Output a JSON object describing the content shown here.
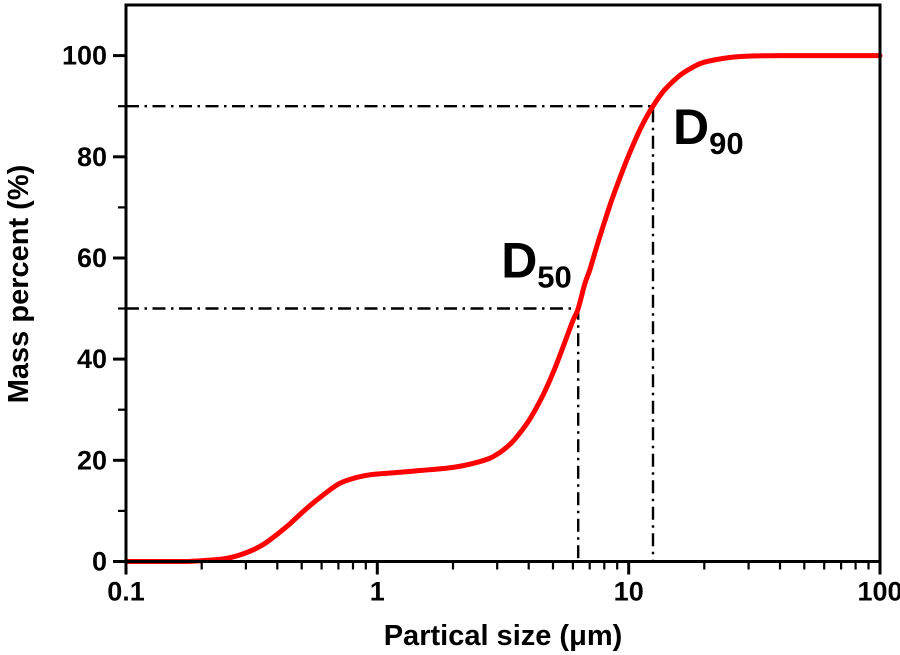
{
  "chart_data": {
    "type": "line",
    "title": "",
    "xlabel": "Partical size (μm)",
    "ylabel": "Mass percent (%)",
    "x_scale": "log",
    "y_scale": "linear",
    "xlim": [
      0.1,
      100
    ],
    "ylim": [
      0,
      110
    ],
    "grid": false,
    "legend": "none",
    "axis_color": "#000000",
    "reference_line_color": "#000000",
    "x_major_ticks": [
      0.1,
      1,
      10,
      100
    ],
    "x_tick_labels": [
      "0.1",
      "1",
      "10",
      "100"
    ],
    "x_minor_ticks": [
      0.2,
      0.3,
      0.4,
      0.5,
      0.6,
      0.7,
      0.8,
      0.9,
      2,
      3,
      4,
      5,
      6,
      7,
      8,
      9,
      20,
      30,
      40,
      50,
      60,
      70,
      80,
      90
    ],
    "y_major_ticks": [
      0,
      20,
      40,
      60,
      80,
      100
    ],
    "y_tick_labels": [
      "0",
      "20",
      "40",
      "60",
      "80",
      "100"
    ],
    "y_minor_ticks": [
      10,
      30,
      50,
      70,
      90
    ],
    "series": [
      {
        "name": "cumulative_mass_percent",
        "color": "#ff0000",
        "points": [
          [
            0.1,
            0
          ],
          [
            0.13,
            0
          ],
          [
            0.17,
            0
          ],
          [
            0.2,
            0.15
          ],
          [
            0.25,
            0.6
          ],
          [
            0.3,
            1.7
          ],
          [
            0.35,
            3.3
          ],
          [
            0.4,
            5.4
          ],
          [
            0.45,
            7.5
          ],
          [
            0.5,
            9.6
          ],
          [
            0.55,
            11.4
          ],
          [
            0.6,
            12.9
          ],
          [
            0.7,
            15.3
          ],
          [
            0.8,
            16.4
          ],
          [
            0.9,
            17.0
          ],
          [
            1.0,
            17.3
          ],
          [
            1.2,
            17.6
          ],
          [
            1.5,
            18.0
          ],
          [
            2.0,
            18.6
          ],
          [
            2.5,
            19.6
          ],
          [
            2.8,
            20.4
          ],
          [
            3.0,
            21.2
          ],
          [
            3.2,
            22.2
          ],
          [
            3.5,
            24.0
          ],
          [
            4.0,
            27.8
          ],
          [
            4.5,
            32.3
          ],
          [
            5.0,
            37.3
          ],
          [
            5.5,
            42.6
          ],
          [
            6.0,
            47.6
          ],
          [
            6.3,
            50.0
          ],
          [
            6.7,
            55.0
          ],
          [
            7.0,
            57.6
          ],
          [
            7.5,
            62.6
          ],
          [
            8.0,
            67.0
          ],
          [
            8.5,
            71.0
          ],
          [
            9.0,
            74.4
          ],
          [
            9.5,
            77.5
          ],
          [
            10,
            80.3
          ],
          [
            11,
            85.0
          ],
          [
            12,
            88.6
          ],
          [
            12.5,
            90.0
          ],
          [
            13,
            91.3
          ],
          [
            14,
            93.4
          ],
          [
            16,
            96.1
          ],
          [
            18,
            97.7
          ],
          [
            20,
            98.7
          ],
          [
            25,
            99.6
          ],
          [
            30,
            99.9
          ],
          [
            40,
            100
          ],
          [
            60,
            100
          ],
          [
            100,
            100
          ]
        ]
      }
    ],
    "annotations": [
      {
        "text": "D",
        "sub": "50",
        "percent": 50,
        "size_um": 6.3
      },
      {
        "text": "D",
        "sub": "90",
        "percent": 90,
        "size_um": 12.5
      }
    ]
  }
}
